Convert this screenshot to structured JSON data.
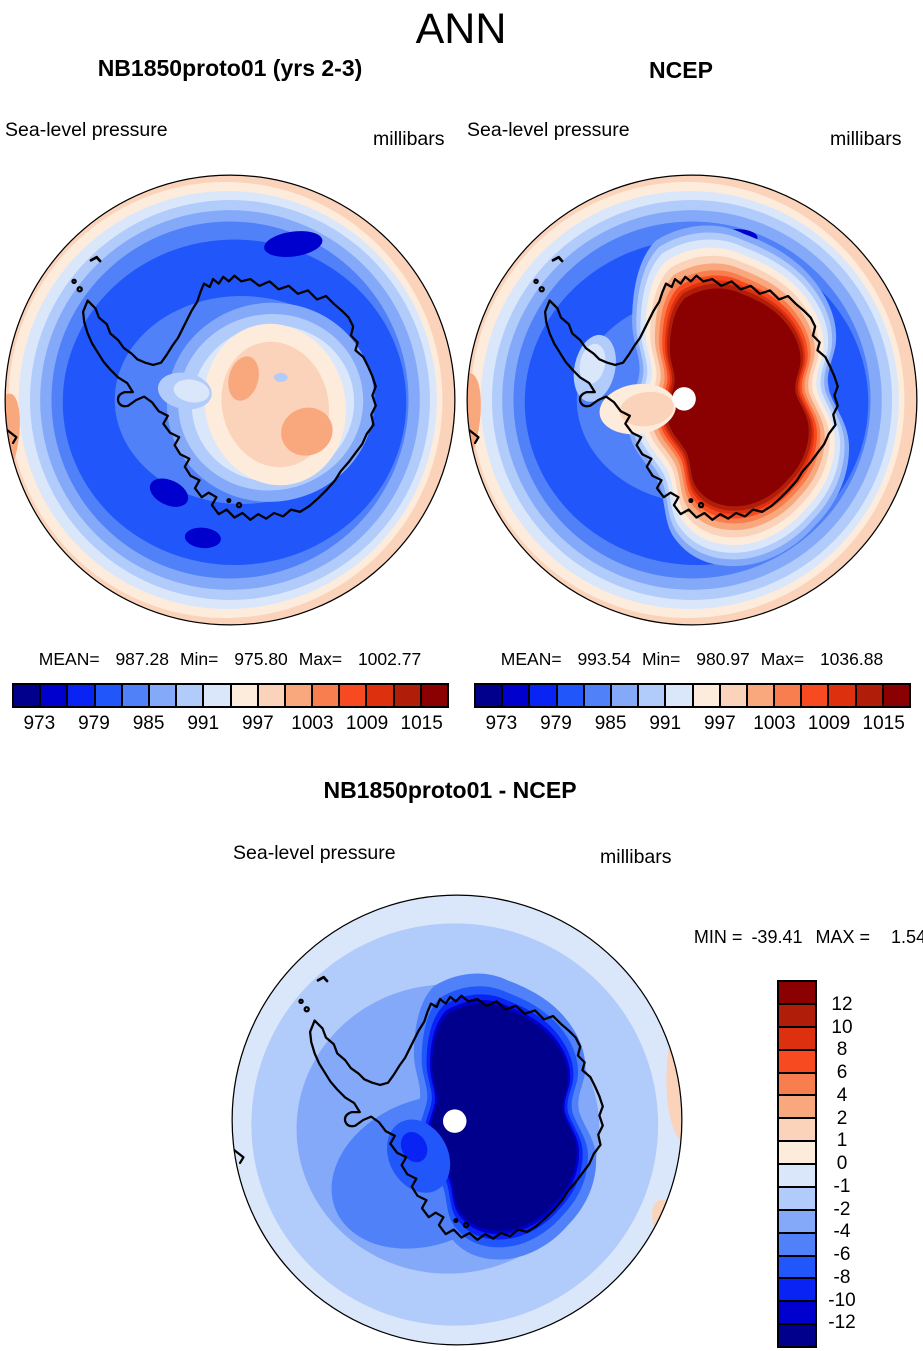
{
  "header": {
    "title": "ANN"
  },
  "palette": [
    "#00008C",
    "#0000CE",
    "#0A23F5",
    "#2157FA",
    "#5081F8",
    "#85A9F9",
    "#B1CBFA",
    "#DAE7FB",
    "#FDEBDC",
    "#FAD3BA",
    "#F9A87E",
    "#F87E4F",
    "#F84A20",
    "#DC300F",
    "#B01E0A",
    "#8B0000"
  ],
  "panels": [
    {
      "title": "NB1850proto01 (yrs 2-3)",
      "field": "Sea-level pressure",
      "units": "millibars",
      "stats": {
        "mean_label": "MEAN=",
        "mean": "987.28",
        "min_label": "Min=",
        "min": "975.80",
        "max_label": "Max=",
        "max": "1002.77"
      },
      "colorbar_ticks": [
        "973",
        "979",
        "985",
        "991",
        "997",
        "1003",
        "1009",
        "1015"
      ]
    },
    {
      "title": "NCEP",
      "field": "Sea-level pressure",
      "units": "millibars",
      "stats": {
        "mean_label": "MEAN=",
        "mean": "993.54",
        "min_label": "Min=",
        "min": "980.97",
        "max_label": "Max=",
        "max": "1036.88"
      },
      "colorbar_ticks": [
        "973",
        "979",
        "985",
        "991",
        "997",
        "1003",
        "1009",
        "1015"
      ]
    }
  ],
  "diff_panel": {
    "title": "NB1850proto01 - NCEP",
    "field": "Sea-level pressure",
    "units": "millibars",
    "min_label": "MIN =",
    "min": "-39.41",
    "max_label": "MAX =",
    "max": "1.54",
    "colorbar_ticks": [
      "12",
      "10",
      "8",
      "6",
      "4",
      "2",
      "1",
      "0",
      "-1",
      "-2",
      "-4",
      "-6",
      "-8",
      "-10",
      "-12"
    ]
  },
  "chart_data": [
    {
      "type": "heatmap",
      "title": "NB1850proto01 (yrs 2-3)",
      "variable": "Sea-level pressure",
      "units": "millibars",
      "projection": "south polar stereographic (Antarctica centered)",
      "stats": {
        "mean": 987.28,
        "min": 975.8,
        "max": 1002.77
      },
      "contour_levels": [
        973,
        976,
        979,
        982,
        985,
        988,
        991,
        994,
        997,
        1000,
        1003,
        1006,
        1009,
        1012,
        1015
      ],
      "labeled_levels": [
        973,
        979,
        985,
        991,
        997,
        1003,
        1009,
        1015
      ],
      "legend_position": "horizontal colorbar below map",
      "palette_classes": 16,
      "description": "Circumpolar low-pressure belt (~975-985 mb) over the Southern Ocean, light peach rim (~997-1003 mb) at the subtropical edge, and a relative high (~997-1006 mb) over the Antarctic interior."
    },
    {
      "type": "heatmap",
      "title": "NCEP",
      "variable": "Sea-level pressure",
      "units": "millibars",
      "projection": "south polar stereographic (Antarctica centered)",
      "stats": {
        "mean": 993.54,
        "min": 980.97,
        "max": 1036.88
      },
      "contour_levels": [
        973,
        976,
        979,
        982,
        985,
        988,
        991,
        994,
        997,
        1000,
        1003,
        1006,
        1009,
        1012,
        1015
      ],
      "labeled_levels": [
        973,
        979,
        985,
        991,
        997,
        1003,
        1009,
        1015
      ],
      "legend_position": "horizontal colorbar below map",
      "palette_classes": 16,
      "description": "Very high extrapolated pressure (>1015 mb, up to 1036.88) over the East Antarctic plateau shown as a dark-red blob with tight orange rings, circumpolar low belt over the ocean, missing-data white disk at the pole."
    },
    {
      "type": "heatmap",
      "title": "NB1850proto01 - NCEP",
      "variable": "Sea-level pressure difference",
      "units": "millibars",
      "projection": "south polar stereographic (Antarctica centered)",
      "stats": {
        "min": -39.41,
        "max": 1.54
      },
      "contour_levels": [
        -12,
        -10,
        -8,
        -6,
        -4,
        -2,
        -1,
        0,
        1,
        2,
        4,
        6,
        8,
        10,
        12
      ],
      "labeled_levels": [
        12,
        10,
        8,
        6,
        4,
        2,
        1,
        0,
        -1,
        -2,
        -4,
        -6,
        -8,
        -10,
        -12
      ],
      "legend_position": "vertical colorbar right of map",
      "palette_classes": 16,
      "description": "Large negative differences (< -12 mb) over East Antarctica (dark navy core), moderate negative differences (-1 to -8 mb) over the surrounding ocean, small positive patches (0 to +2 mb) at the map rim; missing-data white disk at the pole."
    }
  ]
}
